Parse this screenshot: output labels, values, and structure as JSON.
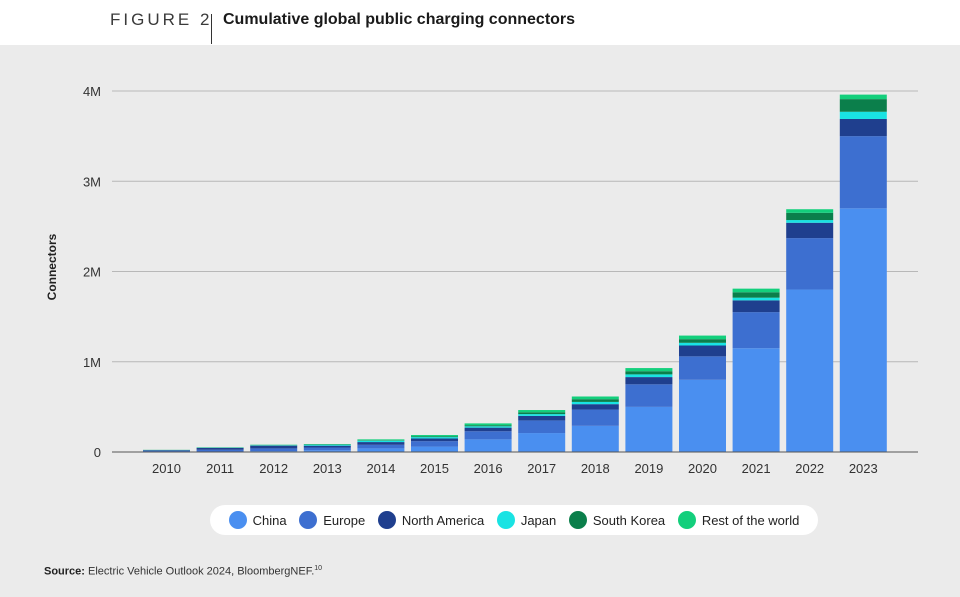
{
  "header": {
    "figure_label": "FIGURE 2",
    "title": "Cumulative global public charging connectors"
  },
  "source": {
    "label": "Source:",
    "text": "Electric Vehicle Outlook 2024, BloombergNEF.",
    "footnote": "10"
  },
  "colors": {
    "China": "#4a8ff0",
    "Europe": "#3d6fd0",
    "North America": "#1f3f8e",
    "Japan": "#19e3e3",
    "South Korea": "#0b7f4b",
    "Rest of the world": "#13cf7c",
    "panel_background": "#ebebeb",
    "gridline": "#b8b8b8"
  },
  "chart_data": {
    "type": "bar",
    "stacked": true,
    "title": "Cumulative global public charging connectors",
    "ylabel": "Connectors",
    "xlabel": "",
    "ylim": [
      0,
      4000000
    ],
    "yticks": [
      0,
      1000000,
      2000000,
      3000000,
      4000000
    ],
    "ytick_labels": [
      "0",
      "1M",
      "2M",
      "3M",
      "4M"
    ],
    "grid": true,
    "legend_position": "bottom",
    "categories": [
      "2010",
      "2011",
      "2012",
      "2013",
      "2014",
      "2015",
      "2016",
      "2017",
      "2018",
      "2019",
      "2020",
      "2021",
      "2022",
      "2023"
    ],
    "series": [
      {
        "name": "China",
        "values": [
          2000,
          5000,
          10000,
          20000,
          40000,
          60000,
          140000,
          210000,
          290000,
          500000,
          800000,
          1150000,
          1800000,
          2700000
        ]
      },
      {
        "name": "Europe",
        "values": [
          10000,
          20000,
          30000,
          30000,
          40000,
          60000,
          90000,
          140000,
          180000,
          250000,
          260000,
          400000,
          570000,
          800000
        ]
      },
      {
        "name": "North America",
        "values": [
          8000,
          20000,
          30000,
          20000,
          30000,
          30000,
          40000,
          50000,
          60000,
          80000,
          120000,
          130000,
          170000,
          190000
        ]
      },
      {
        "name": "Japan",
        "values": [
          2000,
          3000,
          5000,
          10000,
          15000,
          15000,
          15000,
          20000,
          25000,
          30000,
          30000,
          30000,
          30000,
          80000
        ]
      },
      {
        "name": "South Korea",
        "values": [
          1000,
          2000,
          3000,
          3000,
          5000,
          8000,
          12000,
          20000,
          30000,
          35000,
          40000,
          60000,
          80000,
          140000
        ]
      },
      {
        "name": "Rest of the world",
        "values": [
          1000,
          2000,
          3000,
          5000,
          10000,
          15000,
          20000,
          25000,
          30000,
          35000,
          40000,
          40000,
          40000,
          50000
        ]
      }
    ]
  }
}
